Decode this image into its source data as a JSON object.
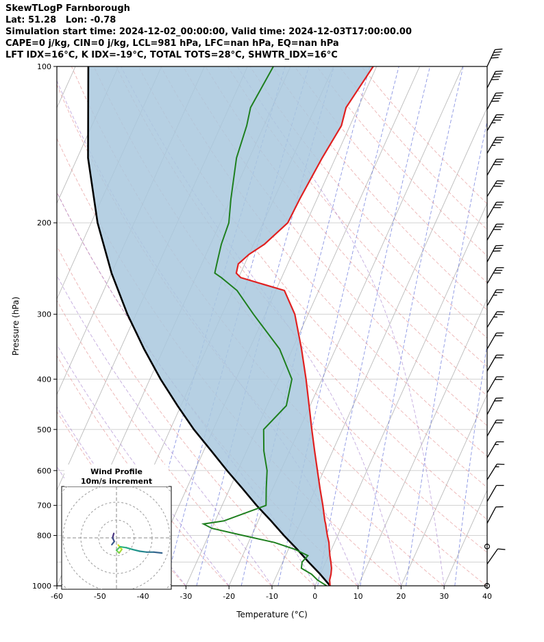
{
  "header": {
    "title": "SkewTLogP Farnborough",
    "lat_lon": "Lat: 51.28   Lon: -0.78",
    "times": "Simulation start time: 2024-12-02_00:00:00, Valid time: 2024-12-03T17:00:00.00",
    "indices1": "CAPE=0 j/kg, CIN=0 j/kg, LCL=981 hPa, LFC=nan hPa, EQ=nan hPa",
    "indices2": "LFT IDX=16°C, K IDX=-19°C, TOTAL TOTS=28°C, SHWTR_IDX=16°C"
  },
  "axes": {
    "xlabel": "Temperature (°C)",
    "ylabel": "Pressure (hPa)",
    "x_ticks": [
      -60,
      -50,
      -40,
      -30,
      -20,
      -10,
      0,
      10,
      20,
      30,
      40
    ],
    "y_ticks": [
      100,
      200,
      300,
      400,
      500,
      600,
      700,
      800,
      1000
    ],
    "x_range": [
      -60,
      40
    ],
    "p_range": [
      100,
      1000
    ],
    "skew": 0.45
  },
  "colors": {
    "temperature": "#e02020",
    "dewpoint": "#1e7f1e",
    "parcel": "#000000",
    "shading": "#a9c8de",
    "isotherm": "#b3b3b3",
    "isobar": "#cccccc",
    "dry_adiabat": "#e08080",
    "moist_adiabat": "#9b72c8",
    "mixing_ratio": "#4a5bd4",
    "barb": "#000000",
    "hodograph_ring": "#999999"
  },
  "chart_data": {
    "type": "skewt_log_p",
    "isobars": [
      100,
      200,
      300,
      400,
      500,
      600,
      700,
      800,
      900,
      1000
    ],
    "isotherms": {
      "start": -120,
      "end": 40,
      "step": 10
    },
    "dry_adiabats": {
      "start_K": 243,
      "end_K": 443,
      "step": 10
    },
    "moist_adiabats": [
      -40,
      -30,
      -20,
      -10,
      0,
      10,
      20,
      30
    ],
    "mixing_ratios": [
      0.1,
      0.2,
      0.4,
      1,
      2,
      4,
      8,
      16,
      32
    ],
    "sounding": {
      "pressure": [
        1000,
        975,
        950,
        925,
        900,
        875,
        850,
        825,
        800,
        775,
        760,
        750,
        700,
        650,
        600,
        550,
        500,
        450,
        400,
        350,
        300,
        270,
        255,
        250,
        240,
        230,
        220,
        200,
        180,
        150,
        130,
        120,
        100
      ],
      "temperature": [
        3.5,
        2.8,
        2.5,
        2.0,
        1.2,
        0.3,
        -0.5,
        -1.3,
        -2.4,
        -3.4,
        -4.0,
        -4.5,
        -6.6,
        -9.0,
        -11.5,
        -14.2,
        -17.1,
        -20.2,
        -23.7,
        -27.9,
        -33.1,
        -38.0,
        -49.5,
        -51.0,
        -51.5,
        -50.0,
        -47.5,
        -44.3,
        -44.0,
        -43.1,
        -42.0,
        -42.8,
        -40.8
      ],
      "dewpoint": [
        2.7,
        0.0,
        -2.0,
        -5.0,
        -5.5,
        -4.8,
        -8.6,
        -14.0,
        -22.0,
        -30.0,
        -32.4,
        -28.0,
        -19.8,
        -21.5,
        -23.2,
        -26.0,
        -28.3,
        -25.5,
        -27.0,
        -33.0,
        -42.7,
        -49.0,
        -54.0,
        -56.0,
        -56.5,
        -57.0,
        -57.5,
        -58.0,
        -60.0,
        -63.0,
        -64.0,
        -65.0,
        -64.0
      ]
    },
    "parcel": {
      "pressure": [
        1000,
        950,
        900,
        850,
        800,
        750,
        700,
        650,
        600,
        550,
        500,
        450,
        400,
        350,
        300,
        250,
        200,
        150,
        100
      ],
      "temperature": [
        3.5,
        0.0,
        -4.0,
        -8.0,
        -12.5,
        -17.0,
        -22.0,
        -27.0,
        -32.5,
        -38.2,
        -44.5,
        -50.8,
        -57.5,
        -64.5,
        -72.0,
        -80.0,
        -88.5,
        -97.5,
        -107.0
      ]
    },
    "wind_barbs": [
      {
        "p": 100,
        "s": 40,
        "d": 25
      },
      {
        "p": 110,
        "s": 40,
        "d": 27
      },
      {
        "p": 121,
        "s": 38,
        "d": 28
      },
      {
        "p": 133,
        "s": 35,
        "d": 30
      },
      {
        "p": 147,
        "s": 35,
        "d": 30
      },
      {
        "p": 162,
        "s": 32,
        "d": 30
      },
      {
        "p": 178,
        "s": 32,
        "d": 32
      },
      {
        "p": 196,
        "s": 30,
        "d": 30
      },
      {
        "p": 216,
        "s": 30,
        "d": 30
      },
      {
        "p": 238,
        "s": 28,
        "d": 28
      },
      {
        "p": 262,
        "s": 28,
        "d": 30
      },
      {
        "p": 289,
        "s": 25,
        "d": 30
      },
      {
        "p": 318,
        "s": 25,
        "d": 32
      },
      {
        "p": 350,
        "s": 22,
        "d": 30
      },
      {
        "p": 386,
        "s": 22,
        "d": 30
      },
      {
        "p": 425,
        "s": 20,
        "d": 30
      },
      {
        "p": 468,
        "s": 18,
        "d": 28
      },
      {
        "p": 515,
        "s": 18,
        "d": 30
      },
      {
        "p": 567,
        "s": 15,
        "d": 30
      },
      {
        "p": 625,
        "s": 15,
        "d": 32
      },
      {
        "p": 688,
        "s": 12,
        "d": 30
      },
      {
        "p": 758,
        "s": 10,
        "d": 28
      },
      {
        "p": 840,
        "s": 0,
        "d": 0
      },
      {
        "p": 908,
        "s": 8,
        "d": 35
      },
      {
        "p": 1000,
        "s": 0,
        "d": 0
      }
    ],
    "hodograph": {
      "title": "Wind Profile",
      "subtitle": "10m/s increment",
      "rings_ms": [
        10,
        20,
        30,
        40
      ],
      "trace": [
        {
          "u": 1,
          "v": -4,
          "c": "#fde725"
        },
        {
          "u": 3,
          "v": -6.5,
          "c": "#d8e219"
        },
        {
          "u": 1.5,
          "v": -8.5,
          "c": "#a8db34"
        },
        {
          "u": 0,
          "v": -7,
          "c": "#7ad151"
        },
        {
          "u": 2,
          "v": -5,
          "c": "#52c569"
        },
        {
          "u": 5.5,
          "v": -5.5,
          "c": "#2fb47c"
        },
        {
          "u": 9,
          "v": -6.5,
          "c": "#21a585"
        },
        {
          "u": 13,
          "v": -7.5,
          "c": "#1f958b"
        },
        {
          "u": 17,
          "v": -8,
          "c": "#24868e"
        },
        {
          "u": 21,
          "v": -8,
          "c": "#2b748e"
        },
        {
          "u": 25.5,
          "v": -8.5,
          "c": "#33638d"
        }
      ],
      "trace2": [
        {
          "u": -1.5,
          "v": 2.5,
          "c": "#440154"
        },
        {
          "u": -2.2,
          "v": 0,
          "c": "#46307e"
        },
        {
          "u": -1.2,
          "v": -2,
          "c": "#3f4889"
        },
        {
          "u": -2.6,
          "v": -3.8,
          "c": "#38598c"
        }
      ]
    }
  }
}
